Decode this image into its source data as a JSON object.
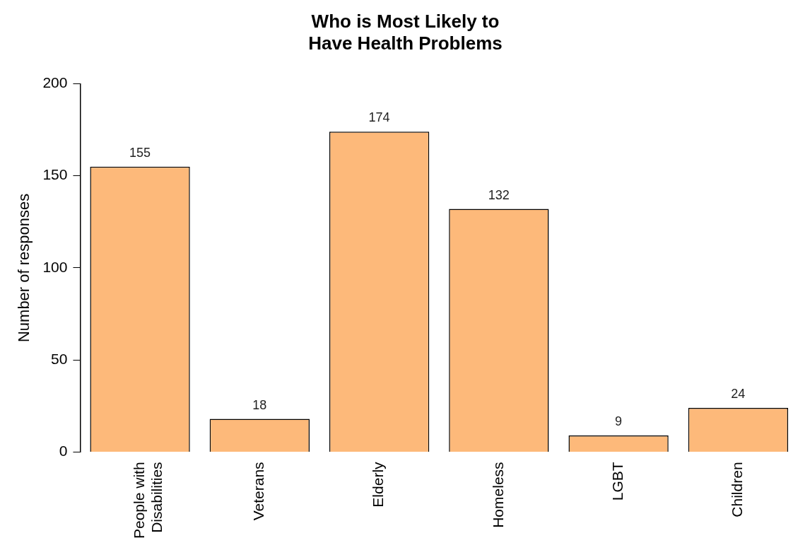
{
  "chart_data": {
    "type": "bar",
    "title": "Who is Most Likely to\nHave Health Problems",
    "ylabel": "Number of responses",
    "categories": [
      "People with Disabilities",
      "Veterans",
      "Elderly",
      "Homeless",
      "LGBT",
      "Children"
    ],
    "values": [
      155,
      18,
      174,
      132,
      9,
      24
    ],
    "color": "#fdb97a",
    "ylim": [
      0,
      200
    ],
    "yticks": [
      0,
      50,
      100,
      150,
      200
    ],
    "grid": false,
    "legend": false,
    "data_labels": true
  }
}
